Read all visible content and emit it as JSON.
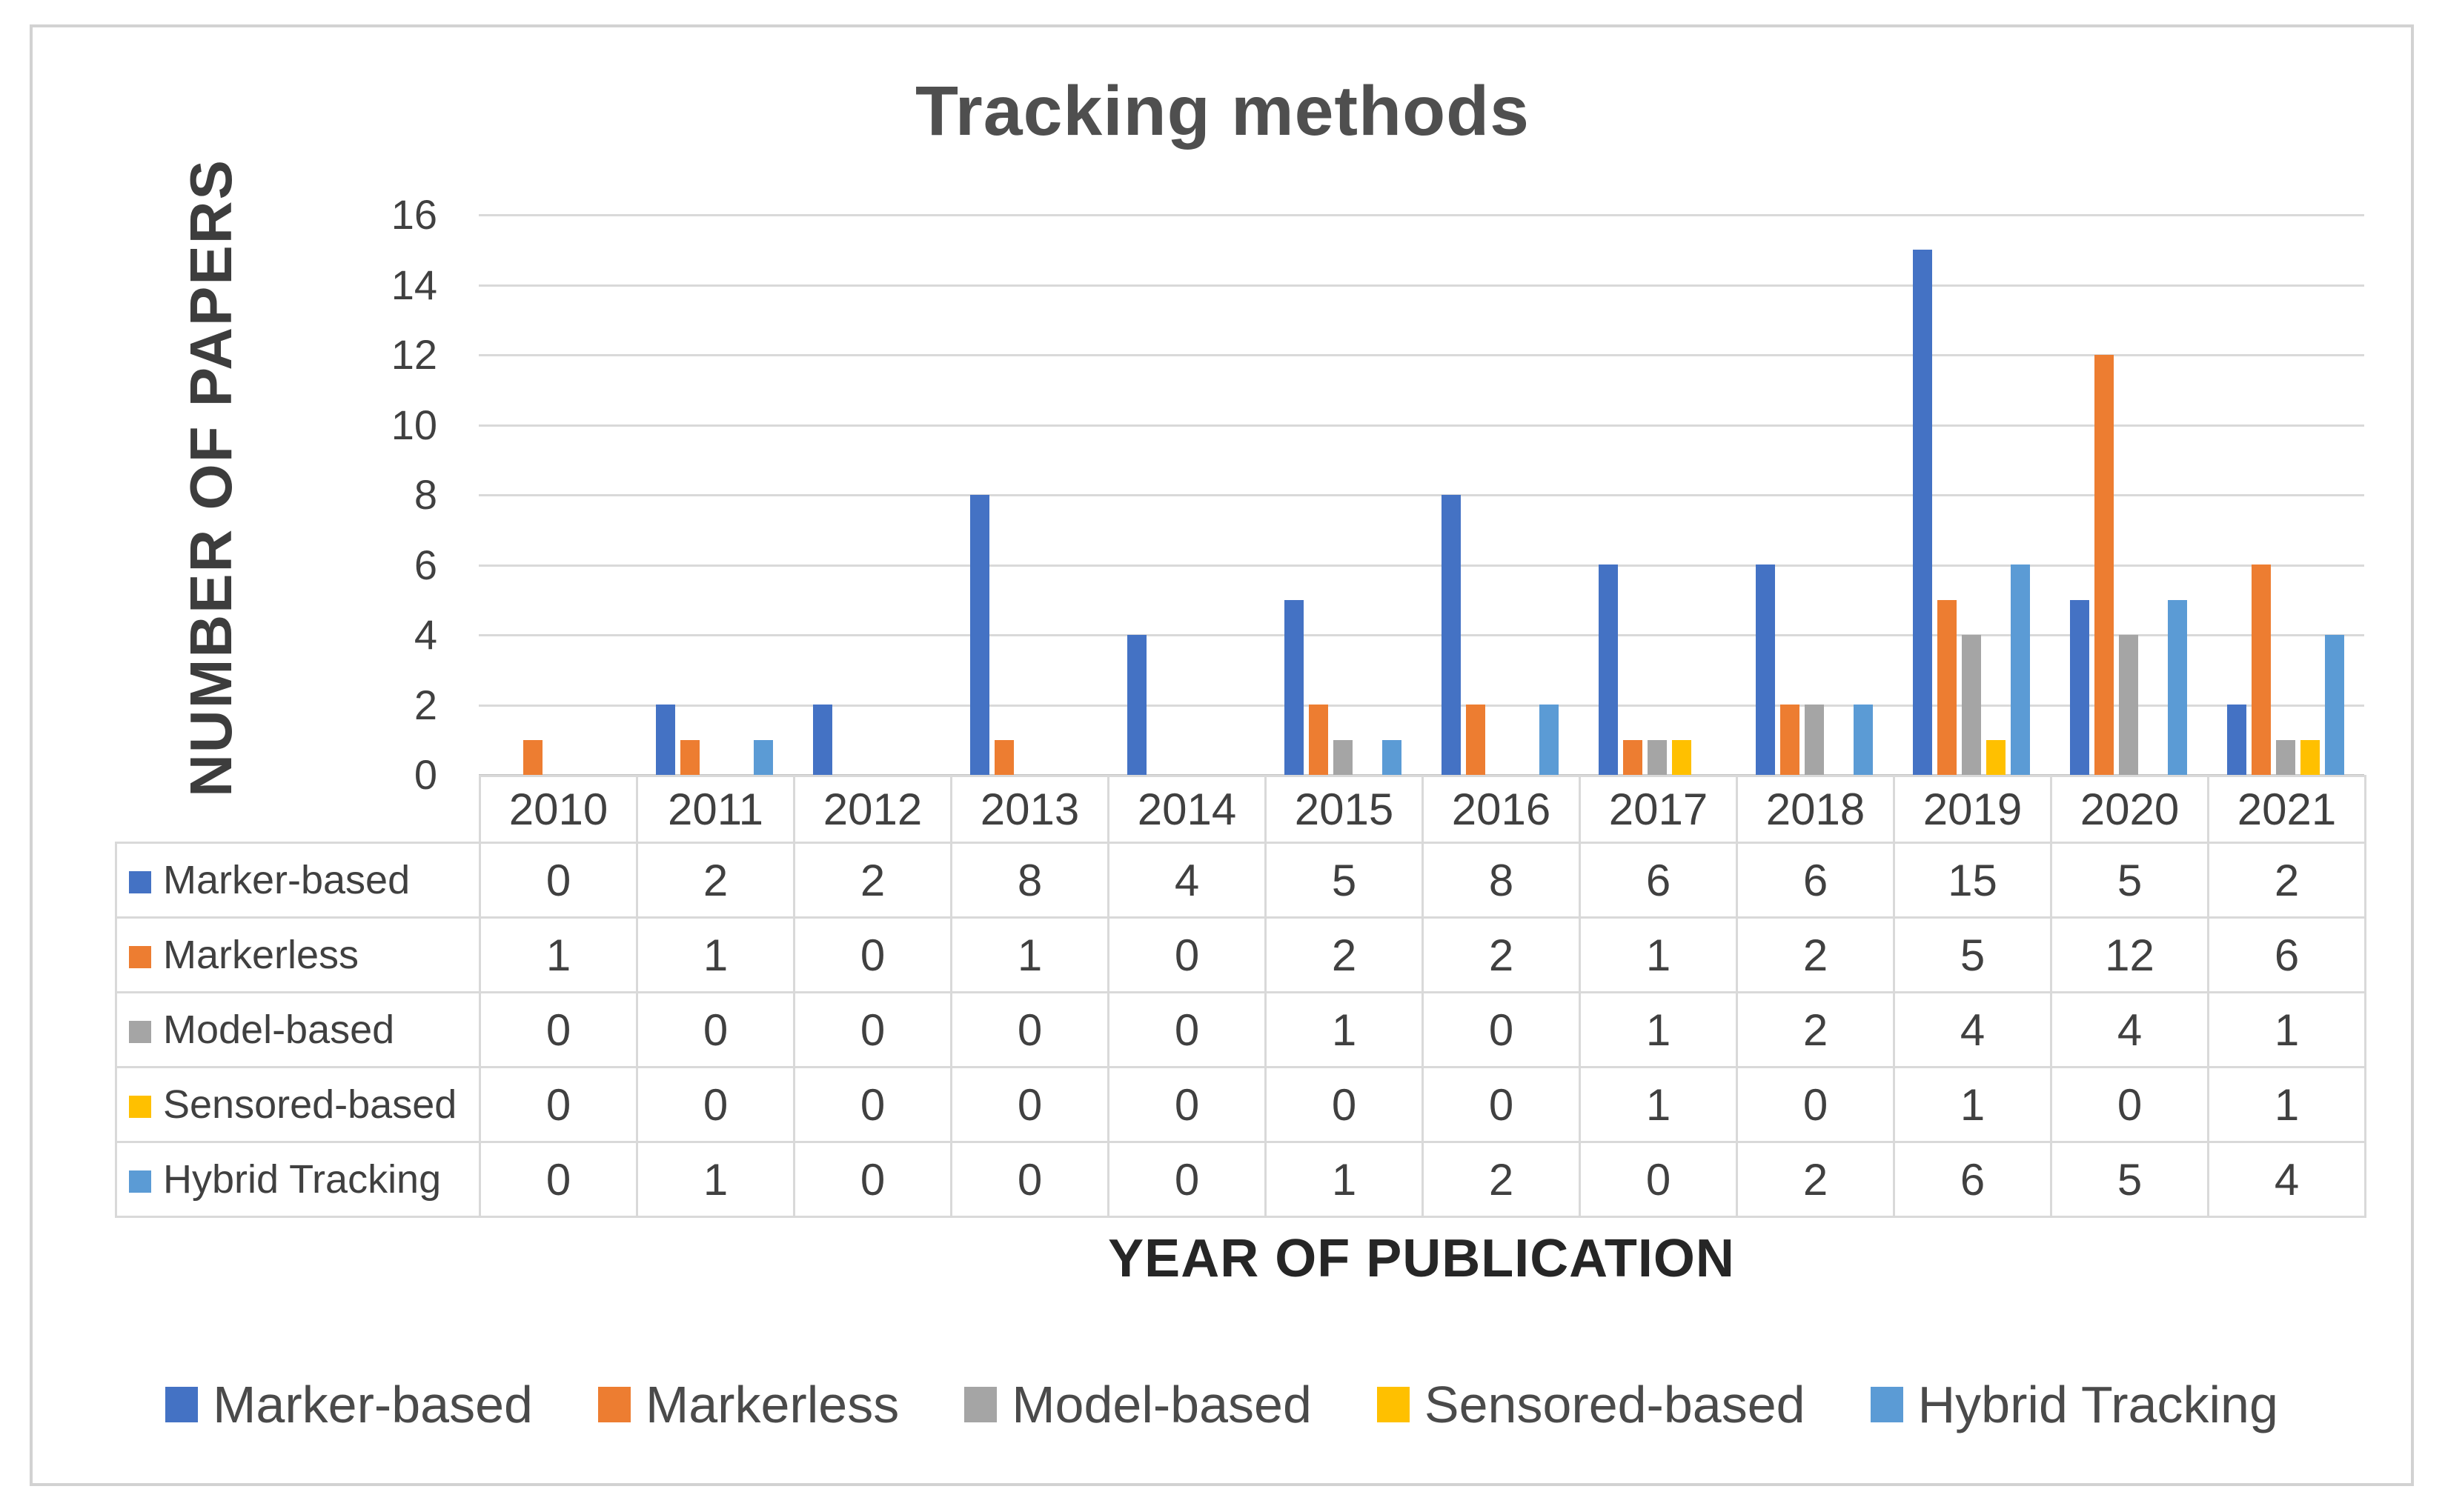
{
  "chart_data": {
    "type": "bar",
    "title": "Tracking methods",
    "xlabel": "YEAR OF PUBLICATION",
    "ylabel": "NUMBER OF PAPERS",
    "ylim": [
      0,
      16
    ],
    "ytick_step": 2,
    "yticks": [
      0,
      2,
      4,
      6,
      8,
      10,
      12,
      14,
      16
    ],
    "grid": true,
    "legend_position": "bottom",
    "data_table_shown": true,
    "categories": [
      "2010",
      "2011",
      "2012",
      "2013",
      "2014",
      "2015",
      "2016",
      "2017",
      "2018",
      "2019",
      "2020",
      "2021"
    ],
    "series": [
      {
        "name": "Marker-based",
        "color": "#4472C4",
        "values": [
          0,
          2,
          2,
          8,
          4,
          5,
          8,
          6,
          6,
          15,
          5,
          2
        ]
      },
      {
        "name": "Markerless",
        "color": "#ED7D31",
        "values": [
          1,
          1,
          0,
          1,
          0,
          2,
          2,
          1,
          2,
          5,
          12,
          6
        ]
      },
      {
        "name": "Model-based",
        "color": "#A5A5A5",
        "values": [
          0,
          0,
          0,
          0,
          0,
          1,
          0,
          1,
          2,
          4,
          4,
          1
        ]
      },
      {
        "name": "Sensored-based",
        "color": "#FFC000",
        "values": [
          0,
          0,
          0,
          0,
          0,
          0,
          0,
          1,
          0,
          1,
          0,
          1
        ]
      },
      {
        "name": "Hybrid Tracking",
        "color": "#5B9BD5",
        "values": [
          0,
          1,
          0,
          0,
          0,
          1,
          2,
          0,
          2,
          6,
          5,
          4
        ]
      }
    ],
    "colors": {
      "gridline": "#d9d9d9",
      "axis_line": "#c4c4c4",
      "text": "#404040",
      "title_text": "#4f4f4f"
    }
  }
}
